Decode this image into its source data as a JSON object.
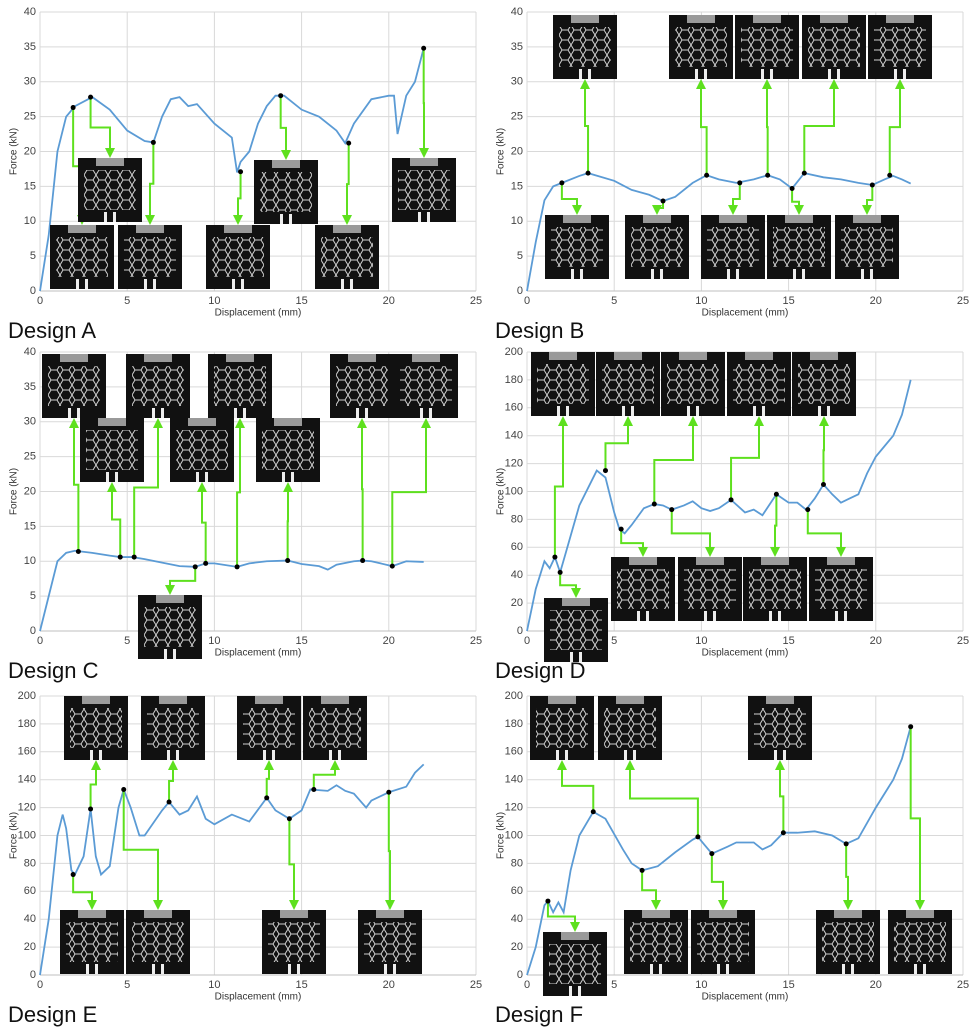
{
  "chart_data": [
    {
      "type": "line",
      "title": "Design A",
      "xlabel": "Displacement (mm)",
      "ylabel": "Force (kN)",
      "xlim": [
        0,
        25
      ],
      "xticks": [
        0,
        5,
        10,
        15,
        20,
        25
      ],
      "ylim": [
        0,
        40
      ],
      "yticks": [
        0,
        5,
        10,
        15,
        20,
        25,
        30,
        35,
        40
      ],
      "grid": true,
      "color": "#5b9bd5",
      "x": [
        0,
        0.5,
        1,
        1.5,
        2,
        3,
        4,
        5,
        6,
        6.5,
        7,
        7.5,
        8,
        8.5,
        9,
        10,
        11,
        11.3,
        11.5,
        12,
        12.5,
        13,
        13.5,
        14,
        15,
        16,
        17,
        17.5,
        18,
        19,
        20,
        20.3,
        20.5,
        21,
        21.5,
        22
      ],
      "values": [
        0,
        8,
        20,
        25,
        26.5,
        27.8,
        26,
        23,
        21.5,
        21.3,
        25,
        27.5,
        27.8,
        26.5,
        26.8,
        24,
        22,
        17,
        18.5,
        20,
        24,
        26.5,
        28,
        28,
        26,
        25,
        23,
        21.2,
        24,
        27.5,
        28,
        28,
        22.5,
        28,
        30,
        34.8
      ],
      "markers": {
        "color": "#000000",
        "x": [
          1.9,
          2.9,
          6.5,
          11.5,
          13.8,
          17.7,
          22
        ],
        "values": [
          26.3,
          27.8,
          21.3,
          17.1,
          28,
          21.2,
          34.8
        ]
      }
    },
    {
      "type": "line",
      "title": "Design B",
      "xlabel": "Displacement (mm)",
      "ylabel": "Force (kN)",
      "xlim": [
        0,
        25
      ],
      "xticks": [
        0,
        5,
        10,
        15,
        20,
        25
      ],
      "ylim": [
        0,
        40
      ],
      "yticks": [
        0,
        5,
        10,
        15,
        20,
        25,
        30,
        35,
        40
      ],
      "grid": true,
      "color": "#5b9bd5",
      "x": [
        0,
        0.5,
        1,
        1.5,
        2,
        3,
        3.5,
        5,
        6,
        7,
        7.8,
        8.5,
        9.5,
        10.3,
        11,
        12,
        13,
        13.8,
        14.5,
        15.2,
        15.9,
        17,
        18,
        19,
        19.8,
        20.5,
        21,
        21.5,
        22
      ],
      "values": [
        0,
        7,
        13,
        15,
        15.5,
        16.5,
        16.9,
        15.8,
        14.5,
        13.8,
        12.9,
        13.5,
        15.5,
        16.6,
        16,
        15.5,
        16,
        16.6,
        16,
        14.7,
        16.9,
        16.3,
        16,
        15.5,
        15.2,
        16,
        16.5,
        16,
        15.4
      ],
      "markers": {
        "color": "#000000",
        "x": [
          2,
          3.5,
          7.8,
          10.3,
          12.2,
          13.8,
          15.2,
          15.9,
          19.8,
          20.8
        ],
        "values": [
          15.5,
          16.9,
          12.9,
          16.6,
          15.5,
          16.6,
          14.7,
          16.9,
          15.2,
          16.6
        ]
      }
    },
    {
      "type": "line",
      "title": "Design C",
      "xlabel": "Displacement (mm)",
      "ylabel": "Force (kN)",
      "xlim": [
        0,
        25
      ],
      "xticks": [
        0,
        5,
        10,
        15,
        20,
        25
      ],
      "ylim": [
        0,
        40
      ],
      "yticks": [
        0,
        5,
        10,
        15,
        20,
        25,
        30,
        35,
        40
      ],
      "grid": true,
      "color": "#5b9bd5",
      "x": [
        0,
        0.5,
        1,
        1.5,
        2,
        3,
        4,
        4.6,
        5.3,
        6,
        7,
        8,
        8.9,
        9.5,
        10,
        11.3,
        12,
        13,
        14.2,
        15,
        16,
        16.5,
        17,
        18,
        18.5,
        19,
        20.2,
        21,
        22
      ],
      "values": [
        0,
        5,
        10,
        11.2,
        11.5,
        11.2,
        10.8,
        10.6,
        10.6,
        10.3,
        9.8,
        9.3,
        9.2,
        9.7,
        9.7,
        9.2,
        9.7,
        10,
        10.1,
        9.6,
        9.3,
        8.8,
        9.5,
        10,
        10.1,
        10,
        9.3,
        10,
        9.9
      ],
      "markers": {
        "color": "#000000",
        "x": [
          2.2,
          4.6,
          5.4,
          8.9,
          9.5,
          11.3,
          14.2,
          18.5,
          20.2
        ],
        "values": [
          11.4,
          10.6,
          10.6,
          9.2,
          9.7,
          9.2,
          10.1,
          10.1,
          9.3
        ]
      }
    },
    {
      "type": "line",
      "title": "Design D",
      "xlabel": "Displacement (mm)",
      "ylabel": "Force (kN)",
      "xlim": [
        0,
        25
      ],
      "xticks": [
        0,
        5,
        10,
        15,
        20,
        25
      ],
      "ylim": [
        0,
        200
      ],
      "yticks": [
        0,
        20,
        40,
        60,
        80,
        100,
        120,
        140,
        160,
        180,
        200
      ],
      "grid": true,
      "color": "#5b9bd5",
      "x": [
        0,
        0.5,
        1,
        1.3,
        1.6,
        1.9,
        2.2,
        3,
        4,
        4.5,
        5,
        5.3,
        5.6,
        6,
        6.7,
        7.3,
        7.8,
        8.3,
        9,
        9.5,
        10,
        10.5,
        11,
        11.7,
        12.5,
        13,
        13.5,
        14.3,
        15,
        15.5,
        16,
        16.5,
        17,
        17.5,
        18,
        18.5,
        19,
        19.5,
        20,
        21,
        21.5,
        22
      ],
      "values": [
        0,
        30,
        50,
        45,
        53,
        42,
        55,
        90,
        115,
        110,
        85,
        73,
        70,
        76,
        88,
        91,
        90,
        87,
        90,
        93,
        88,
        86,
        88,
        94,
        85,
        87,
        83,
        98,
        92,
        92,
        87,
        95,
        105,
        98,
        92,
        95,
        98,
        113,
        125,
        140,
        155,
        180
      ],
      "markers": {
        "color": "#000000",
        "x": [
          1.6,
          1.9,
          4.5,
          5.4,
          7.3,
          8.3,
          11.7,
          14.3,
          16.1,
          17
        ],
        "values": [
          53,
          42,
          115,
          73,
          91,
          87,
          94,
          98,
          87,
          105
        ]
      }
    },
    {
      "type": "line",
      "title": "Design E",
      "xlabel": "Displacement (mm)",
      "ylabel": "Force (kN)",
      "xlim": [
        0,
        25
      ],
      "xticks": [
        0,
        5,
        10,
        15,
        20,
        25
      ],
      "ylim": [
        0,
        200
      ],
      "yticks": [
        0,
        20,
        40,
        60,
        80,
        100,
        120,
        140,
        160,
        180,
        200
      ],
      "grid": true,
      "color": "#5b9bd5",
      "x": [
        0,
        0.5,
        1,
        1.3,
        1.5,
        1.8,
        2,
        2.5,
        2.9,
        3.2,
        3.5,
        4,
        4.5,
        4.8,
        5.2,
        5.7,
        6,
        7,
        7.4,
        8,
        8.5,
        9,
        9.5,
        10,
        11,
        12,
        13,
        13.5,
        14.3,
        15,
        15.5,
        16.5,
        17,
        17.5,
        18,
        18.7,
        19,
        20,
        21,
        21.5,
        22
      ],
      "values": [
        0,
        40,
        100,
        115,
        105,
        75,
        72,
        85,
        119,
        85,
        72,
        78,
        120,
        133,
        120,
        100,
        100,
        118,
        124,
        115,
        118,
        128,
        112,
        108,
        115,
        110,
        127,
        118,
        112,
        118,
        133,
        132,
        136,
        132,
        130,
        120,
        125,
        131,
        135,
        145,
        151
      ],
      "markers": {
        "color": "#000000",
        "x": [
          1.9,
          2.9,
          4.8,
          7.4,
          13,
          14.3,
          15.7,
          20
        ],
        "values": [
          72,
          119,
          133,
          124,
          127,
          112,
          133,
          131
        ]
      }
    },
    {
      "type": "line",
      "title": "Design F",
      "xlabel": "Displacement (mm)",
      "ylabel": "Force (kN)",
      "xlim": [
        0,
        25
      ],
      "xticks": [
        0,
        5,
        10,
        15,
        20,
        25
      ],
      "ylim": [
        0,
        200
      ],
      "yticks": [
        0,
        20,
        40,
        60,
        80,
        100,
        120,
        140,
        160,
        180,
        200
      ],
      "grid": true,
      "color": "#5b9bd5",
      "x": [
        0,
        0.5,
        1,
        1.2,
        1.5,
        1.8,
        2.1,
        2.5,
        3,
        3.8,
        4.5,
        5.5,
        6,
        6.6,
        7.5,
        8.5,
        9.5,
        9.8,
        10.2,
        10.6,
        11.5,
        12,
        13,
        13.5,
        14,
        14.7,
        15.5,
        16.5,
        17.5,
        18.3,
        19,
        20,
        21,
        21.5,
        22
      ],
      "values": [
        0,
        20,
        50,
        53,
        45,
        52,
        45,
        75,
        100,
        117,
        112,
        90,
        80,
        75,
        78,
        88,
        97,
        99,
        93,
        87,
        92,
        95,
        95,
        90,
        93,
        102,
        102,
        103,
        100,
        94,
        98,
        120,
        140,
        155,
        178
      ],
      "markers": {
        "color": "#000000",
        "x": [
          1.2,
          3.8,
          6.6,
          9.8,
          10.6,
          14.7,
          18.3,
          22
        ],
        "values": [
          53,
          117,
          75,
          99,
          87,
          102,
          94,
          178
        ]
      }
    }
  ]
}
